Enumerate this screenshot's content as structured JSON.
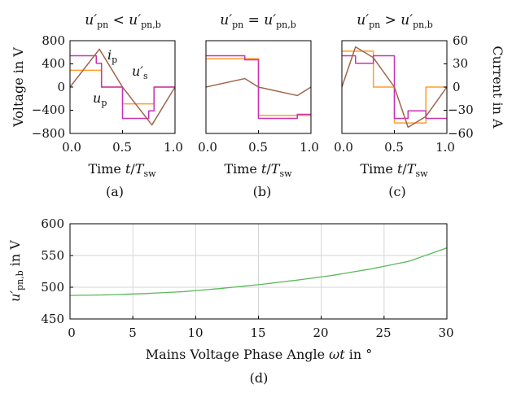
{
  "colors": {
    "up": "#c832b4",
    "us": "#ff9e2a",
    "ip": "#a0644b",
    "mains": "#5ab95a",
    "axis": "#000000",
    "grid": "#d6d6d6"
  },
  "panels": {
    "a": {
      "title": {
        "lhs": "u′",
        "lhs_sub": "pn",
        "op": "<",
        "rhs": "u′",
        "rhs_sub": "pn,b"
      },
      "label": "(a)"
    },
    "b": {
      "title": {
        "lhs": "u′",
        "lhs_sub": "pn",
        "op": "=",
        "rhs": "u′",
        "rhs_sub": "pn,b"
      },
      "label": "(b)"
    },
    "c": {
      "title": {
        "lhs": "u′",
        "lhs_sub": "pn",
        "op": ">",
        "rhs": "u′",
        "rhs_sub": "pn,b"
      },
      "label": "(c)"
    },
    "d": {
      "label": "(d)"
    }
  },
  "labels": {
    "voltage_axis": "Voltage in V",
    "current_axis": "Current in A",
    "time_axis": {
      "prefix": "Time ",
      "t": "t",
      "slash": "/",
      "T": "T",
      "T_sub": "sw"
    },
    "ip": {
      "main": "i",
      "sub": "p"
    },
    "us": {
      "main": "u′",
      "sub": "s"
    },
    "up": {
      "main": "u",
      "sub": "p"
    },
    "bottom_ylabel": {
      "main": "u′",
      "sub": "pn,b",
      "suffix": " in V"
    },
    "bottom_xlabel": {
      "text": "Mains Voltage Phase Angle ",
      "var": "ωt",
      "suffix": " in °"
    }
  },
  "chart_data": [
    {
      "type": "line",
      "panel": "a",
      "x_ticks": [
        "0.0",
        "0.5",
        "1.0"
      ],
      "y_left_ticks": [
        "800",
        "400",
        "0",
        "−400",
        "−800"
      ],
      "xlim": [
        0,
        1
      ],
      "ylim_left": [
        -800,
        800
      ],
      "ylim_right": [
        -60,
        60
      ],
      "series": [
        {
          "key": "up",
          "axis": "left",
          "x": [
            0,
            0.25,
            0.25,
            0.3,
            0.3,
            0.5,
            0.5,
            0.75,
            0.75,
            0.8,
            0.8,
            1.0
          ],
          "y": [
            540,
            540,
            410,
            410,
            0,
            0,
            -540,
            -540,
            -410,
            -410,
            0,
            0
          ]
        },
        {
          "key": "us",
          "axis": "left",
          "x": [
            0,
            0.3,
            0.3,
            0.5,
            0.5,
            0.8,
            0.8,
            1.0
          ],
          "y": [
            290,
            290,
            0,
            0,
            -290,
            -290,
            0,
            0
          ]
        },
        {
          "key": "ip",
          "axis": "right",
          "x": [
            0,
            0.28,
            0.5,
            0.78,
            1.0
          ],
          "y": [
            0,
            49,
            0,
            -49,
            0
          ]
        }
      ]
    },
    {
      "type": "line",
      "panel": "b",
      "x_ticks": [
        "0.0",
        "0.5",
        "1.0"
      ],
      "xlim": [
        0,
        1
      ],
      "ylim_left": [
        -800,
        800
      ],
      "ylim_right": [
        -60,
        60
      ],
      "series": [
        {
          "key": "up",
          "axis": "left",
          "x": [
            0,
            0.37,
            0.37,
            0.5,
            0.5,
            0.87,
            0.87,
            1.0
          ],
          "y": [
            540,
            540,
            470,
            470,
            -540,
            -540,
            -470,
            -470
          ]
        },
        {
          "key": "us",
          "axis": "left",
          "x": [
            0,
            0.5,
            0.5,
            1.0
          ],
          "y": [
            490,
            490,
            -490,
            -490
          ]
        },
        {
          "key": "ip",
          "axis": "right",
          "x": [
            0,
            0.37,
            0.5,
            0.87,
            1.0
          ],
          "y": [
            0,
            11,
            0,
            -11,
            0
          ]
        }
      ]
    },
    {
      "type": "line",
      "panel": "c",
      "x_ticks": [
        "0.0",
        "0.5",
        "1.0"
      ],
      "y_right_ticks": [
        "60",
        "30",
        "0",
        "−30",
        "−60"
      ],
      "xlim": [
        0,
        1
      ],
      "ylim_left": [
        -800,
        800
      ],
      "ylim_right": [
        -60,
        60
      ],
      "series": [
        {
          "key": "up",
          "axis": "left",
          "x": [
            0,
            0.13,
            0.13,
            0.3,
            0.3,
            0.5,
            0.5,
            0.63,
            0.63,
            0.8,
            0.8,
            1.0
          ],
          "y": [
            540,
            540,
            410,
            410,
            540,
            540,
            -540,
            -540,
            -410,
            -410,
            -540,
            -540
          ]
        },
        {
          "key": "us",
          "axis": "left",
          "x": [
            0,
            0.3,
            0.3,
            0.5,
            0.5,
            0.8,
            0.8,
            1.0
          ],
          "y": [
            620,
            620,
            0,
            0,
            -620,
            -620,
            0,
            0
          ]
        },
        {
          "key": "ip",
          "axis": "right",
          "x": [
            0,
            0.13,
            0.3,
            0.5,
            0.63,
            0.8,
            1.0
          ],
          "y": [
            0,
            52,
            38,
            0,
            -52,
            -38,
            0
          ]
        }
      ]
    },
    {
      "type": "line",
      "panel": "d",
      "x": [
        0,
        3,
        6,
        9,
        12,
        15,
        18,
        21,
        24,
        27,
        30
      ],
      "xlim": [
        0,
        30
      ],
      "ylim": [
        450,
        600
      ],
      "x_ticks": [
        "0",
        "5",
        "10",
        "15",
        "20",
        "25",
        "30"
      ],
      "y_ticks": [
        "600",
        "550",
        "500",
        "450"
      ],
      "grid": true,
      "series": [
        {
          "key": "mains",
          "y": [
            487,
            488,
            490,
            493,
            498,
            504,
            511,
            519,
            529,
            541,
            562
          ]
        }
      ]
    }
  ]
}
